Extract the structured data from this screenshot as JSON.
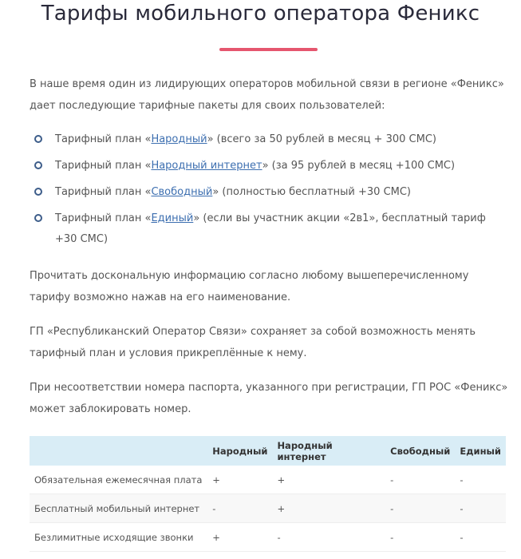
{
  "title": "Тарифы мобильного оператора Феникс",
  "accent_color": "#e5566e",
  "intro": "В наше время один из лидирующих операторов мобильной связи в регионе «Феникс» дает последующие тарифные пакеты для своих пользователей:",
  "plans": [
    {
      "prefix": "Тарифный план «",
      "link": "Народный",
      "suffix": "» (всего за 50 рублей в месяц + 300 СМС)"
    },
    {
      "prefix": "Тарифный план «",
      "link": "Народный интернет",
      "suffix": "» (за 95 рублей в месяц +100 СМС)"
    },
    {
      "prefix": "Тарифный план «",
      "link": "Свободный",
      "suffix": "» (полностью бесплатный +30 СМС)"
    },
    {
      "prefix": "Тарифный план «",
      "link": "Единый",
      "suffix": "» (если вы участник акции «2в1», бесплатный тариф +30 СМС)"
    }
  ],
  "p2": "Прочитать доскональную информацию согласно любому вышеперечисленному тарифу возможно нажав на его наименование.",
  "p3": "ГП «Республиканский Оператор Связи» сохраняет за собой возможность менять тарифный план и условия прикреплённые к нему.",
  "p4": "При несоответствии номера паспорта, указанного при регистрации, ГП РОС «Феникс» может заблокировать номер.",
  "table": {
    "headers": [
      "",
      "Народный",
      "Народный интернет",
      "Свободный",
      "Единый"
    ],
    "rows": [
      [
        "Обязательная ежемесячная плата",
        "+",
        "+",
        "-",
        "-"
      ],
      [
        "Бесплатный мобильный интернет",
        "-",
        "+",
        "-",
        "-"
      ],
      [
        "Безлимитные исходящие звонки",
        "+",
        "-",
        "-",
        "-"
      ]
    ]
  }
}
